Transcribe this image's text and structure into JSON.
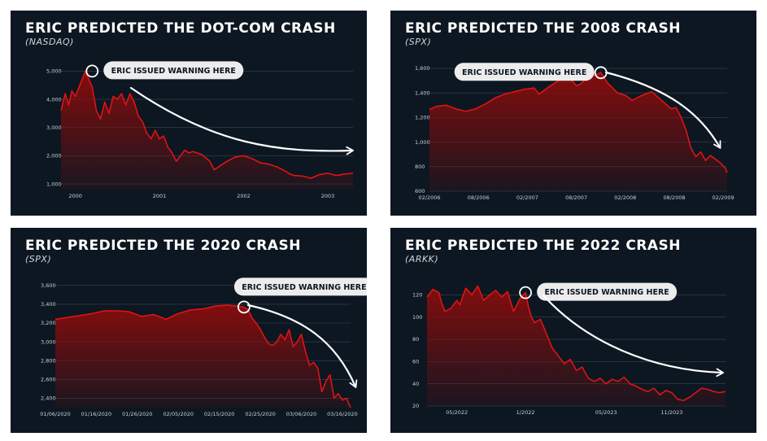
{
  "colors": {
    "panel_bg": "#0c1722",
    "line": "#e01313",
    "fill_top": "#8a0c0c",
    "grid": "#3a4550",
    "callout_bg": "#ececec",
    "arrow": "#ffffff"
  },
  "panels": [
    {
      "title": "ERIC PREDICTED THE DOT-COM CRASH",
      "subtitle": "(NASDAQ)",
      "callout": "ERIC ISSUED WARNING HERE",
      "chart_data": {
        "type": "area",
        "title": "ERIC PREDICTED THE DOT-COM CRASH",
        "subtitle": "(NASDAQ)",
        "xlim": [
          1999.83,
          2003.3
        ],
        "ylim": [
          800,
          5300
        ],
        "yticks": [
          1000,
          2000,
          3000,
          4000,
          5000
        ],
        "ytick_labels": [
          "1,000",
          "2,000",
          "3,000",
          "4,000",
          "5,000"
        ],
        "xticks": [
          2000,
          2001,
          2002,
          2003
        ],
        "xtick_labels": [
          "2000",
          "2001",
          "2002",
          "2003"
        ],
        "x": [
          1999.83,
          1999.88,
          1999.92,
          1999.96,
          2000.0,
          2000.04,
          2000.08,
          2000.12,
          2000.16,
          2000.2,
          2000.25,
          2000.3,
          2000.35,
          2000.4,
          2000.45,
          2000.5,
          2000.55,
          2000.6,
          2000.65,
          2000.7,
          2000.75,
          2000.8,
          2000.85,
          2000.9,
          2000.95,
          2001.0,
          2001.05,
          2001.1,
          2001.15,
          2001.2,
          2001.25,
          2001.3,
          2001.35,
          2001.4,
          2001.5,
          2001.6,
          2001.65,
          2001.7,
          2001.75,
          2001.8,
          2001.9,
          2002.0,
          2002.1,
          2002.2,
          2002.3,
          2002.4,
          2002.5,
          2002.55,
          2002.6,
          2002.7,
          2002.8,
          2002.9,
          2003.0,
          2003.1,
          2003.2,
          2003.3
        ],
        "series": [
          {
            "values": [
              3600,
              4200,
              3800,
              4300,
              4100,
              4400,
              4700,
              5000,
              4700,
              4450,
              3600,
              3300,
              3900,
              3500,
              4100,
              4000,
              4200,
              3800,
              4200,
              3900,
              3400,
              3200,
              2800,
              2600,
              2900,
              2600,
              2700,
              2300,
              2100,
              1800,
              2000,
              2200,
              2100,
              2150,
              2050,
              1800,
              1500,
              1600,
              1700,
              1800,
              1950,
              2000,
              1900,
              1750,
              1700,
              1600,
              1450,
              1350,
              1300,
              1280,
              1200,
              1330,
              1380,
              1300,
              1350,
              1380
            ]
          }
        ],
        "annotation": "ERIC ISSUED WARNING HERE",
        "warning_point": [
          2000.2,
          5000
        ]
      }
    },
    {
      "title": "ERIC PREDICTED THE 2008 CRASH",
      "subtitle": "(SPX)",
      "callout": "ERIC ISSUED WARNING HERE",
      "chart_data": {
        "type": "area",
        "title": "ERIC PREDICTED THE 2008 CRASH",
        "subtitle": "(SPX)",
        "xlim": [
          2006.08,
          2009.12
        ],
        "ylim": [
          600,
          1620
        ],
        "yticks": [
          600,
          800,
          1000,
          1200,
          1400,
          1600
        ],
        "ytick_labels": [
          "600",
          "800",
          "1,000",
          "1,200",
          "1,400",
          "1,600"
        ],
        "xticks": [
          2006.08,
          2006.58,
          2007.08,
          2007.58,
          2008.08,
          2008.58,
          2009.08
        ],
        "xtick_labels": [
          "02/2006",
          "08/2006",
          "02/2007",
          "08/2007",
          "02/2008",
          "08/2008",
          "02/2009"
        ],
        "x": [
          2006.08,
          2006.15,
          2006.25,
          2006.35,
          2006.45,
          2006.55,
          2006.65,
          2006.75,
          2006.85,
          2006.95,
          2007.05,
          2007.15,
          2007.2,
          2007.3,
          2007.4,
          2007.5,
          2007.58,
          2007.62,
          2007.7,
          2007.78,
          2007.83,
          2007.9,
          2008.0,
          2008.08,
          2008.15,
          2008.25,
          2008.35,
          2008.45,
          2008.55,
          2008.6,
          2008.65,
          2008.7,
          2008.75,
          2008.8,
          2008.85,
          2008.9,
          2008.95,
          2009.0,
          2009.05,
          2009.1,
          2009.12
        ],
        "series": [
          {
            "values": [
              1265,
              1290,
              1300,
              1270,
              1250,
              1270,
              1310,
              1360,
              1390,
              1410,
              1430,
              1440,
              1390,
              1450,
              1500,
              1530,
              1460,
              1470,
              1530,
              1550,
              1565,
              1480,
              1400,
              1380,
              1340,
              1380,
              1410,
              1340,
              1270,
              1280,
              1200,
              1100,
              950,
              880,
              920,
              850,
              890,
              860,
              830,
              790,
              750
            ]
          }
        ],
        "annotation": "ERIC ISSUED WARNING HERE",
        "warning_point": [
          2007.83,
          1565
        ]
      }
    },
    {
      "title": "ERIC PREDICTED THE 2020 CRASH",
      "subtitle": "(SPX)",
      "callout": "ERIC ISSUED WARNING HERE",
      "chart_data": {
        "type": "area",
        "title": "ERIC PREDICTED THE 2020 CRASH",
        "subtitle": "(SPX)",
        "xlim": [
          0,
          72
        ],
        "ylim": [
          2300,
          3650
        ],
        "yticks": [
          2400,
          2600,
          2800,
          3000,
          3200,
          3400,
          3600
        ],
        "ytick_labels": [
          "2,400",
          "2,600",
          "2,800",
          "3,000",
          "3,200",
          "3,400",
          "3,600"
        ],
        "xticks": [
          0,
          10,
          20,
          30,
          40,
          50,
          60,
          70
        ],
        "xtick_labels": [
          "01/06/2020",
          "01/16/2020",
          "01/26/2020",
          "02/05/2020",
          "02/15/2020",
          "02/25/2020",
          "03/06/2020",
          "03/16/2020"
        ],
        "x": [
          0,
          3,
          6,
          9,
          12,
          15,
          18,
          21,
          24,
          27,
          30,
          33,
          36,
          39,
          42,
          44,
          46,
          47,
          48,
          49,
          50,
          51,
          52,
          53,
          54,
          55,
          56,
          57,
          58,
          59,
          60,
          61,
          62,
          63,
          64,
          65,
          66,
          67,
          68,
          69,
          70,
          71,
          72
        ],
        "series": [
          {
            "values": [
              3240,
              3260,
              3280,
              3300,
              3330,
              3330,
              3320,
              3270,
              3290,
              3240,
              3300,
              3340,
              3350,
              3380,
              3390,
              3380,
              3370,
              3340,
              3250,
              3200,
              3130,
              3050,
              2980,
              2960,
              3000,
              3080,
              3020,
              3130,
              2950,
              3000,
              3080,
              2900,
              2750,
              2780,
              2720,
              2470,
              2580,
              2650,
              2400,
              2450,
              2380,
              2400,
              2300
            ]
          }
        ],
        "annotation": "ERIC ISSUED WARNING HERE",
        "warning_point": [
          46,
          3370
        ]
      }
    },
    {
      "title": "ERIC PREDICTED THE 2022 CRASH",
      "subtitle": "(ARKK)",
      "callout": "ERIC ISSUED WARNING HERE",
      "chart_data": {
        "type": "area",
        "title": "ERIC PREDICTED THE 2022 CRASH",
        "subtitle": "(ARKK)",
        "xlim": [
          0,
          100
        ],
        "ylim": [
          20,
          132
        ],
        "yticks": [
          20,
          40,
          60,
          80,
          100,
          120
        ],
        "ytick_labels": [
          "20",
          "40",
          "60",
          "80",
          "100",
          "120"
        ],
        "xticks": [
          10,
          33,
          60,
          82
        ],
        "xtick_labels": [
          "05/2022",
          "1/2022",
          "05/2023",
          "11/2023"
        ],
        "x": [
          0,
          2,
          4,
          5,
          6,
          8,
          10,
          11,
          12,
          13,
          15,
          17,
          19,
          21,
          23,
          25,
          27,
          29,
          31,
          33,
          34,
          35,
          36,
          38,
          40,
          42,
          44,
          46,
          48,
          50,
          52,
          54,
          56,
          58,
          60,
          62,
          64,
          66,
          68,
          70,
          72,
          74,
          76,
          78,
          80,
          82,
          84,
          86,
          88,
          90,
          92,
          94,
          96,
          98,
          100
        ],
        "series": [
          {
            "values": [
              118,
              125,
              122,
              112,
              105,
              108,
              115,
              111,
              119,
              126,
              120,
              128,
              115,
              120,
              124,
              118,
              123,
              105,
              116,
              122,
              109,
              100,
              95,
              98,
              85,
              72,
              65,
              58,
              62,
              52,
              55,
              45,
              42,
              45,
              40,
              44,
              42,
              46,
              40,
              38,
              35,
              33,
              36,
              30,
              34,
              32,
              26,
              25,
              28,
              32,
              36,
              35,
              33,
              32,
              33
            ]
          }
        ],
        "annotation": "ERIC ISSUED WARNING HERE",
        "warning_point": [
          33,
          122
        ]
      }
    }
  ]
}
